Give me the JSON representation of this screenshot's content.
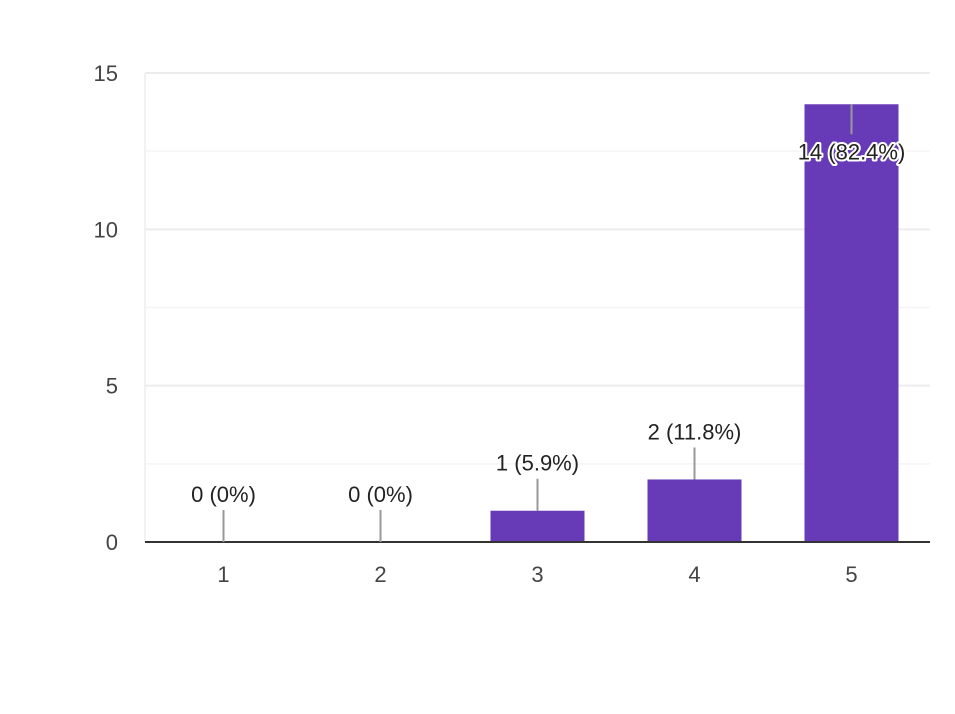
{
  "chart_data": {
    "type": "bar",
    "categories": [
      "1",
      "2",
      "3",
      "4",
      "5"
    ],
    "values": [
      0,
      0,
      1,
      2,
      14
    ],
    "data_labels": [
      "0 (0%)",
      "0 (0%)",
      "1 (5.9%)",
      "2 (11.8%)",
      "14 (82.4%)"
    ],
    "y_ticks": [
      0,
      5,
      10,
      15
    ],
    "ylim": [
      0,
      15
    ],
    "grid": true,
    "legend": "none",
    "bar_color": "#673ab7",
    "title": "",
    "xlabel": "",
    "ylabel": ""
  }
}
